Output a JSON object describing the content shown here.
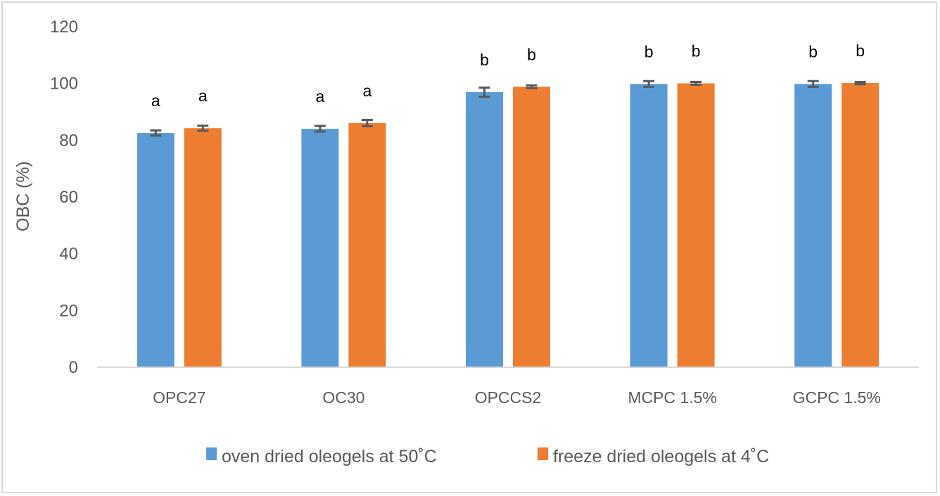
{
  "chart_data": {
    "type": "bar",
    "title": "",
    "xlabel": "",
    "ylabel": "OBC (%)",
    "ylim": [
      0,
      120
    ],
    "yticks": [
      0,
      20,
      40,
      60,
      80,
      100,
      120
    ],
    "ytick_labels": [
      "0",
      "20",
      "40",
      "60",
      "80",
      "100",
      "120"
    ],
    "grid": false,
    "legend_position": "bottom",
    "categories": [
      "OPC27",
      "OC30",
      "OPCCS2",
      "MCPC 1.5%",
      "GCPC 1.5%"
    ],
    "series": [
      {
        "name": "oven dried oleogels at 50˚C",
        "color": "#5b9bd5",
        "values": [
          82.3,
          83.8,
          96.7,
          99.6,
          99.6
        ],
        "errors": [
          0.9,
          1.0,
          1.6,
          1.0,
          1.0
        ],
        "significance": [
          "a",
          "a",
          "b",
          "b",
          "b"
        ]
      },
      {
        "name": "freeze dried oleogels at 4˚C",
        "color": "#ed7d31",
        "values": [
          84.0,
          85.8,
          98.6,
          99.8,
          99.9
        ],
        "errors": [
          0.9,
          1.1,
          0.5,
          0.5,
          0.4
        ],
        "significance": [
          "a",
          "a",
          "b",
          "b",
          "b"
        ]
      }
    ],
    "error_bar_color": "#595959",
    "axis_color": "#d9d9d9"
  }
}
